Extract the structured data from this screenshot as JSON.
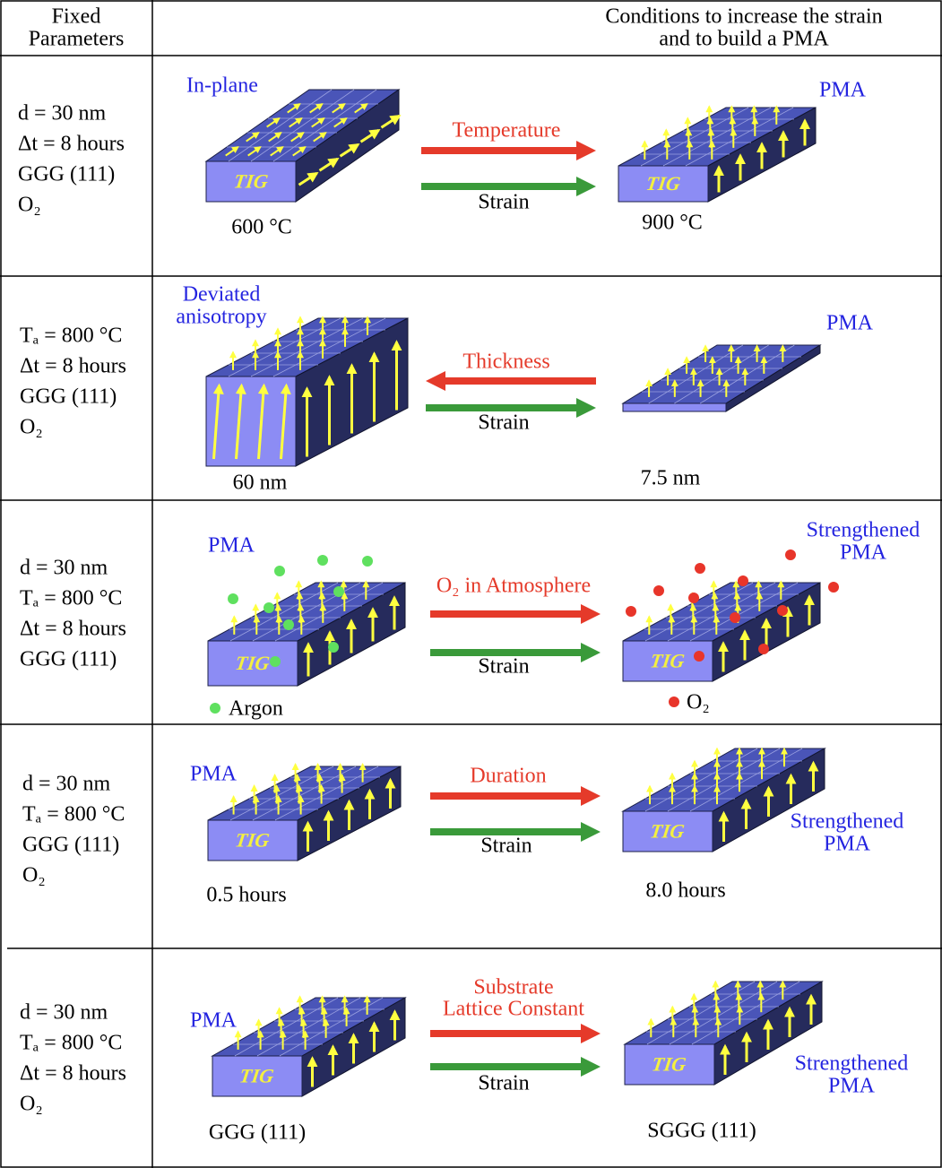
{
  "header": {
    "fixed": [
      "Fixed",
      "Parameters"
    ],
    "conditions": [
      "Conditions to increase the strain",
      "and to build a PMA"
    ]
  },
  "rows": [
    {
      "params": [
        "d = 30 nm",
        "Δt = 8 hours",
        "GGG (111)",
        "O₂"
      ],
      "left_label": [
        "In-plane"
      ],
      "right_label": [
        "PMA"
      ],
      "arrow_label": [
        "Temperature"
      ],
      "strain_label": "Strain",
      "left_caption": "600 °C",
      "right_caption": "900 °C",
      "left_block_text": "TIG",
      "right_block_text": "TIG"
    },
    {
      "params": [
        "Tₐ = 800 °C",
        "Δt = 8 hours",
        "GGG (111)",
        "O₂"
      ],
      "left_label": [
        "Deviated",
        "anisotropy"
      ],
      "right_label": [
        "PMA"
      ],
      "arrow_label": [
        "Thickness"
      ],
      "strain_label": "Strain",
      "left_caption": "60 nm",
      "right_caption": "7.5 nm"
    },
    {
      "params": [
        "d = 30 nm",
        "Tₐ = 800 °C",
        "Δt = 8 hours",
        "GGG (111)"
      ],
      "left_label": [
        "PMA"
      ],
      "right_label": [
        "Strengthened",
        "PMA"
      ],
      "arrow_label": [
        "O₂ in Atmosphere"
      ],
      "strain_label": "Strain",
      "left_caption": "Argon",
      "right_caption": "O₂",
      "left_block_text": "TIG",
      "right_block_text": "TIG"
    },
    {
      "params": [
        "d = 30 nm",
        "Tₐ = 800 °C",
        "GGG (111)",
        "O₂"
      ],
      "left_label": [
        "PMA"
      ],
      "right_label": [
        "Strengthened",
        "PMA"
      ],
      "arrow_label": [
        "Duration"
      ],
      "strain_label": "Strain",
      "left_caption": "0.5 hours",
      "right_caption": "8.0 hours",
      "left_block_text": "TIG",
      "right_block_text": "TIG"
    },
    {
      "params": [
        "d = 30 nm",
        "Tₐ = 800 °C",
        "Δt = 8 hours",
        "O₂"
      ],
      "left_label": [
        "PMA"
      ],
      "right_label": [
        "Strengthened",
        "PMA"
      ],
      "arrow_label": [
        "Substrate",
        "Lattice Constant"
      ],
      "strain_label": "Strain",
      "left_caption": "GGG (111)",
      "right_caption": "SGGG (111)",
      "left_block_text": "TIG",
      "right_block_text": "TIG"
    }
  ]
}
